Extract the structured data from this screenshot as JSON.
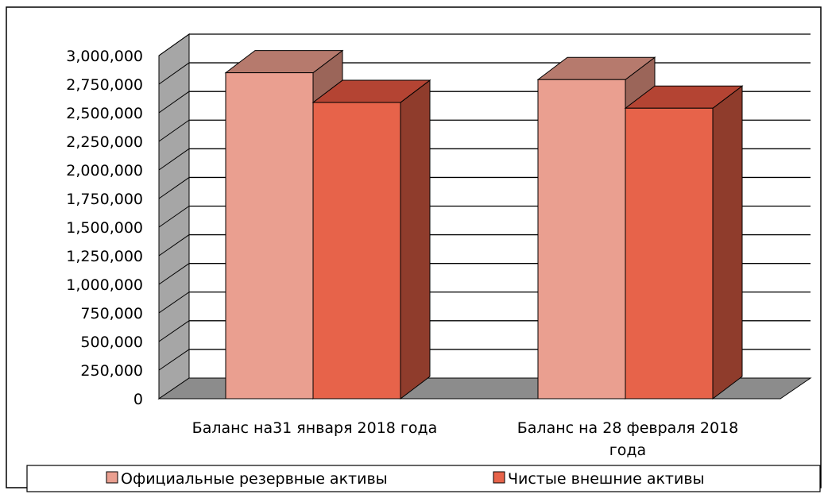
{
  "chart_data": {
    "type": "bar",
    "categories": [
      "Баланс на31 января 2018 года",
      "Баланс на 28 февраля 2018 года"
    ],
    "series": [
      {
        "name": "Официальные резервные активы",
        "values": [
          2850000,
          2790000
        ],
        "color": "#ea9f90",
        "top_color": "#b67a6d",
        "side_color": "#9b6559"
      },
      {
        "name": "Чистые внешние активы",
        "values": [
          2590000,
          2540000
        ],
        "color": "#e7634a",
        "top_color": "#b44433",
        "side_color": "#8f3c2c"
      }
    ],
    "ylim": [
      0,
      3000000
    ],
    "yticks": [
      0,
      250000,
      500000,
      750000,
      1000000,
      1250000,
      1500000,
      1750000,
      2000000,
      2250000,
      2500000,
      2750000,
      3000000
    ],
    "ytick_labels": [
      "0",
      "250,000",
      "500,000",
      "750,000",
      "1,000,000",
      "1,250,000",
      "1,500,000",
      "1,750,000",
      "2,000,000",
      "2,250,000",
      "2,500,000",
      "2,750,000",
      "3,000,000"
    ],
    "grid": true,
    "legend": "bottom",
    "title": "",
    "xlabel": "",
    "ylabel": ""
  }
}
